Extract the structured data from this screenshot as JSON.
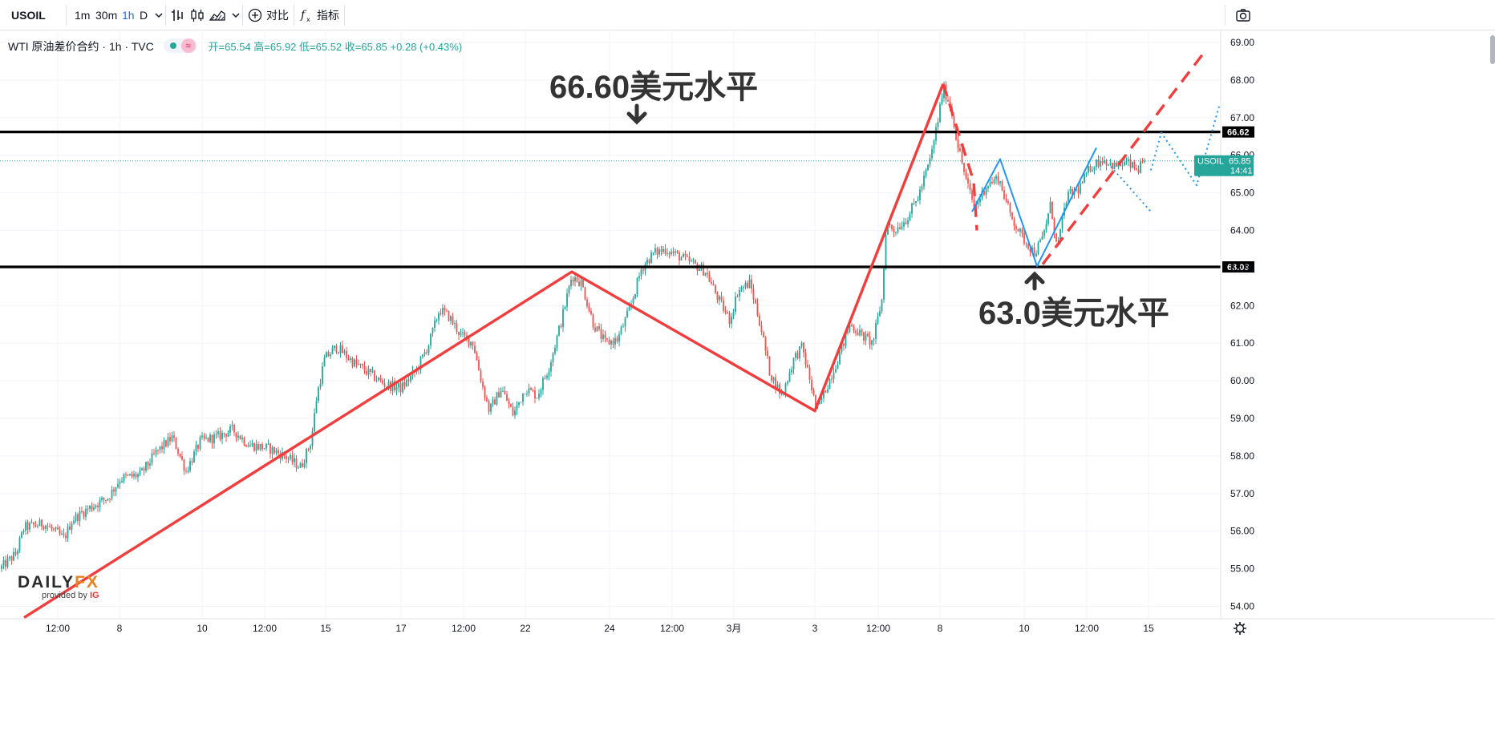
{
  "toolbar": {
    "symbol": "USOIL",
    "intervals": [
      "1m",
      "30m",
      "1h",
      "D"
    ],
    "active_interval": "1h",
    "compare_label": "对比",
    "indicators_label": "指标"
  },
  "legend": {
    "title": "WTI 原油差价合约 · 1h · TVC",
    "open": "开=65.54",
    "high": "高=65.92",
    "low": "低=65.52",
    "close": "收=65.85",
    "change": "+0.28 (+0.43%)"
  },
  "annotations": {
    "resistance_label": "66.60美元水平",
    "support_label": "63.0美元水平"
  },
  "watermark": {
    "brand_part1": "DAILY",
    "brand_part2": "FX",
    "provided_by": "provided by",
    "provider": "IG"
  },
  "colors": {
    "up": "#26a69a",
    "down": "#ef5350",
    "trendline": "#f23d3d",
    "projection_blue": "#2196f3",
    "level_line": "#000000",
    "price_tag": "#26a69a"
  },
  "chart_data": {
    "type": "candlestick",
    "symbol": "USOIL",
    "timeframe": "1h",
    "ylim": [
      53.8,
      69.2
    ],
    "y_ticks": [
      "69.00",
      "68.00",
      "67.00",
      "66.00",
      "65.00",
      "64.00",
      "63.00",
      "62.00",
      "61.00",
      "60.00",
      "59.00",
      "58.00",
      "57.00",
      "56.00",
      "55.00",
      "54.00"
    ],
    "x_ticks": [
      "12:00",
      "8",
      "10",
      "12:00",
      "15",
      "17",
      "12:00",
      "22",
      "24",
      "12:00",
      "3月",
      "3",
      "12:00",
      "8",
      "10",
      "12:00",
      "15"
    ],
    "horizontal_levels": [
      66.62,
      63.03
    ],
    "current_price": 65.85,
    "countdown": "14:41",
    "level_tags": [
      "66.62",
      "63.03"
    ],
    "price_tag_symbol": "USOIL",
    "price_tag_value": "65.85",
    "price_path": [
      [
        0,
        55.0
      ],
      [
        20,
        55.4
      ],
      [
        30,
        56.1
      ],
      [
        55,
        56.2
      ],
      [
        80,
        55.8
      ],
      [
        90,
        56.3
      ],
      [
        110,
        56.6
      ],
      [
        135,
        56.9
      ],
      [
        150,
        57.4
      ],
      [
        175,
        57.5
      ],
      [
        195,
        58.1
      ],
      [
        215,
        58.5
      ],
      [
        232,
        57.6
      ],
      [
        250,
        58.4
      ],
      [
        270,
        58.5
      ],
      [
        290,
        58.7
      ],
      [
        310,
        58.3
      ],
      [
        335,
        58.2
      ],
      [
        355,
        58.0
      ],
      [
        375,
        57.7
      ],
      [
        388,
        58.4
      ],
      [
        395,
        59.6
      ],
      [
        405,
        60.6
      ],
      [
        420,
        60.9
      ],
      [
        440,
        60.5
      ],
      [
        460,
        60.2
      ],
      [
        480,
        59.9
      ],
      [
        500,
        59.8
      ],
      [
        520,
        60.3
      ],
      [
        535,
        61.0
      ],
      [
        548,
        61.9
      ],
      [
        560,
        61.7
      ],
      [
        575,
        61.2
      ],
      [
        590,
        61.0
      ],
      [
        600,
        60.0
      ],
      [
        610,
        59.2
      ],
      [
        625,
        59.8
      ],
      [
        640,
        59.1
      ],
      [
        655,
        59.8
      ],
      [
        670,
        59.6
      ],
      [
        685,
        60.4
      ],
      [
        700,
        61.6
      ],
      [
        713,
        62.8
      ],
      [
        725,
        62.6
      ],
      [
        740,
        61.5
      ],
      [
        755,
        61.0
      ],
      [
        770,
        61.1
      ],
      [
        785,
        61.9
      ],
      [
        800,
        63.0
      ],
      [
        815,
        63.4
      ],
      [
        830,
        63.5
      ],
      [
        848,
        63.3
      ],
      [
        865,
        63.1
      ],
      [
        880,
        62.9
      ],
      [
        895,
        62.2
      ],
      [
        910,
        61.6
      ],
      [
        920,
        62.4
      ],
      [
        935,
        62.6
      ],
      [
        948,
        61.5
      ],
      [
        960,
        60.2
      ],
      [
        975,
        59.6
      ],
      [
        990,
        60.6
      ],
      [
        1000,
        60.9
      ],
      [
        1010,
        60.0
      ],
      [
        1018,
        59.2
      ],
      [
        1030,
        59.8
      ],
      [
        1045,
        60.6
      ],
      [
        1060,
        61.5
      ],
      [
        1075,
        61.2
      ],
      [
        1088,
        61.0
      ],
      [
        1100,
        62.2
      ],
      [
        1105,
        64.2
      ],
      [
        1115,
        64.0
      ],
      [
        1130,
        64.3
      ],
      [
        1145,
        64.9
      ],
      [
        1160,
        65.9
      ],
      [
        1170,
        67.0
      ],
      [
        1176,
        67.8
      ],
      [
        1185,
        67.3
      ],
      [
        1195,
        66.2
      ],
      [
        1205,
        65.3
      ],
      [
        1215,
        64.6
      ],
      [
        1230,
        65.2
      ],
      [
        1245,
        65.4
      ],
      [
        1260,
        64.4
      ],
      [
        1275,
        63.8
      ],
      [
        1290,
        63.4
      ],
      [
        1300,
        63.8
      ],
      [
        1310,
        64.7
      ],
      [
        1318,
        63.5
      ],
      [
        1330,
        64.9
      ],
      [
        1345,
        65.1
      ],
      [
        1360,
        65.7
      ],
      [
        1375,
        65.9
      ],
      [
        1390,
        65.7
      ],
      [
        1405,
        65.8
      ],
      [
        1418,
        65.6
      ],
      [
        1428,
        65.85
      ]
    ],
    "drawings": [
      {
        "type": "trendline",
        "color": "red",
        "points": [
          [
            30,
            53.7
          ],
          [
            713,
            62.9
          ],
          [
            1016,
            59.2
          ],
          [
            1176,
            67.9
          ]
        ]
      },
      {
        "type": "dashed",
        "color": "red",
        "points": [
          [
            1176,
            67.9
          ],
          [
            1214,
            65.3
          ],
          [
            1218,
            64.0
          ]
        ]
      },
      {
        "type": "dashed",
        "color": "red",
        "points": [
          [
            1300,
            63.1
          ],
          [
            1500,
            68.7
          ]
        ]
      },
      {
        "type": "solid",
        "color": "blue",
        "points": [
          [
            1212,
            64.5
          ],
          [
            1247,
            65.9
          ],
          [
            1293,
            63.05
          ],
          [
            1367,
            66.2
          ]
        ]
      },
      {
        "type": "dotted",
        "color": "blue",
        "points": [
          [
            1385,
            65.7
          ],
          [
            1435,
            64.5
          ]
        ]
      },
      {
        "type": "dotted",
        "color": "blue",
        "points": [
          [
            1435,
            65.6
          ],
          [
            1448,
            66.6
          ],
          [
            1492,
            65.2
          ],
          [
            1520,
            67.3
          ]
        ]
      }
    ]
  }
}
